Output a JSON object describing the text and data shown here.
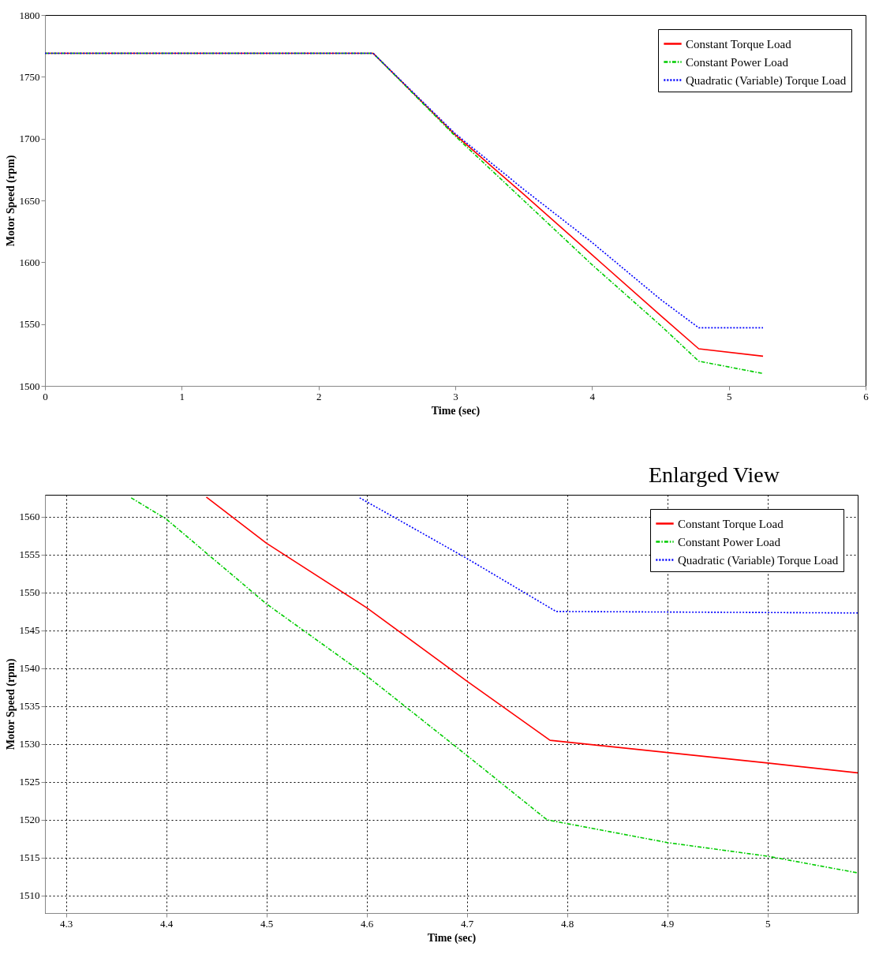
{
  "chart_data": [
    {
      "type": "line",
      "xlabel": "Time (sec)",
      "ylabel": "Motor Speed (rpm)",
      "xlim": [
        0,
        6
      ],
      "ylim": [
        1500,
        1800
      ],
      "xticks": [
        0,
        1,
        2,
        3,
        4,
        5,
        6
      ],
      "yticks": [
        1500,
        1550,
        1600,
        1650,
        1700,
        1750,
        1800
      ],
      "grid": false,
      "legend": "top right",
      "series": [
        {
          "name": "Constant Torque Load",
          "color": "#ff0000",
          "line_style": "solid",
          "x": [
            0,
            2.4,
            3,
            3.5,
            4,
            4.5,
            4.78,
            5.25
          ],
          "values": [
            1769,
            1769,
            1703,
            1655,
            1606,
            1557,
            1530,
            1524
          ]
        },
        {
          "name": "Constant Power Load",
          "color": "#00cc00",
          "line_style": "dashed",
          "x": [
            0,
            2.4,
            3,
            3.5,
            4,
            4.5,
            4.78,
            5.25
          ],
          "values": [
            1769,
            1769,
            1702,
            1650,
            1598,
            1549,
            1520,
            1510
          ]
        },
        {
          "name": "Quadratic (Variable) Torque Load",
          "color": "#0000ff",
          "line_style": "dotted",
          "x": [
            0,
            2.4,
            3,
            3.5,
            4,
            4.5,
            4.78,
            5.25
          ],
          "values": [
            1769,
            1769,
            1704,
            1659,
            1616,
            1570,
            1547,
            1547
          ]
        }
      ]
    },
    {
      "type": "line",
      "xlabel": "Time (sec)",
      "ylabel": "Motor Speed (rpm)",
      "xlim": [
        4.279,
        5.09
      ],
      "ylim": [
        1507.7,
        1562.9
      ],
      "xticks": [
        4.3,
        4.4,
        4.5,
        4.6,
        4.7,
        4.8,
        4.9,
        5
      ],
      "yticks": [
        1510,
        1515,
        1520,
        1525,
        1530,
        1535,
        1540,
        1545,
        1550,
        1555,
        1560
      ],
      "grid": true,
      "legend": "top right",
      "annotations": [
        "Enlarged View"
      ],
      "series": [
        {
          "name": "Constant Torque Load",
          "color": "#ff0000",
          "line_style": "solid",
          "x": [
            4.44,
            4.5,
            4.6,
            4.7,
            4.783,
            5.0,
            5.09
          ],
          "values": [
            1562.6,
            1556.5,
            1548,
            1538.3,
            1530.5,
            1527.5,
            1526.2
          ]
        },
        {
          "name": "Constant Power Load",
          "color": "#00cc00",
          "line_style": "dashed",
          "x": [
            4.365,
            4.4,
            4.5,
            4.6,
            4.7,
            4.78,
            4.9,
            5.0,
            5.09
          ],
          "values": [
            1562.5,
            1559.7,
            1548.5,
            1539,
            1528.5,
            1520,
            1517,
            1515.2,
            1513
          ]
        },
        {
          "name": "Quadratic (Variable) Torque Load",
          "color": "#0000ff",
          "line_style": "dotted",
          "x": [
            4.593,
            4.7,
            4.789,
            5.09
          ],
          "values": [
            1562.5,
            1554.5,
            1547.5,
            1547.3
          ]
        }
      ]
    }
  ]
}
